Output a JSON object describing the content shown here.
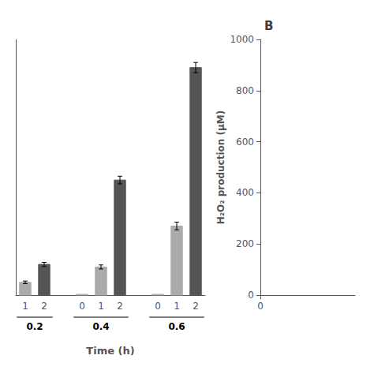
{
  "chart_data": [
    {
      "type": "bar",
      "categories": [
        "1",
        "2",
        "0",
        "1",
        "2",
        "0",
        "1",
        "2"
      ],
      "values": [
        50,
        120,
        3,
        110,
        450,
        3,
        270,
        890
      ],
      "errors": [
        5,
        8,
        0,
        8,
        15,
        0,
        15,
        20
      ],
      "colors": [
        "#aaaaaa",
        "#555555",
        "#aaaaaa",
        "#aaaaaa",
        "#555555",
        "#aaaaaa",
        "#aaaaaa",
        "#555555"
      ],
      "group_labels": [
        "0.2",
        "0.4",
        "0.6"
      ],
      "group_sizes": [
        2,
        3,
        3
      ],
      "xlabel": "Time (h)",
      "ylim": [
        0,
        1000
      ],
      "tick_labels": "x",
      "grid": false
    },
    {
      "type": "bar",
      "title": "B",
      "ylabel": "H₂O₂ production (μM)",
      "xlim": [
        0,
        1
      ],
      "xticks": [
        0
      ],
      "ylim": [
        0,
        1000
      ],
      "yticks": [
        0,
        200,
        400,
        600,
        800,
        1000
      ],
      "grid": false
    }
  ]
}
